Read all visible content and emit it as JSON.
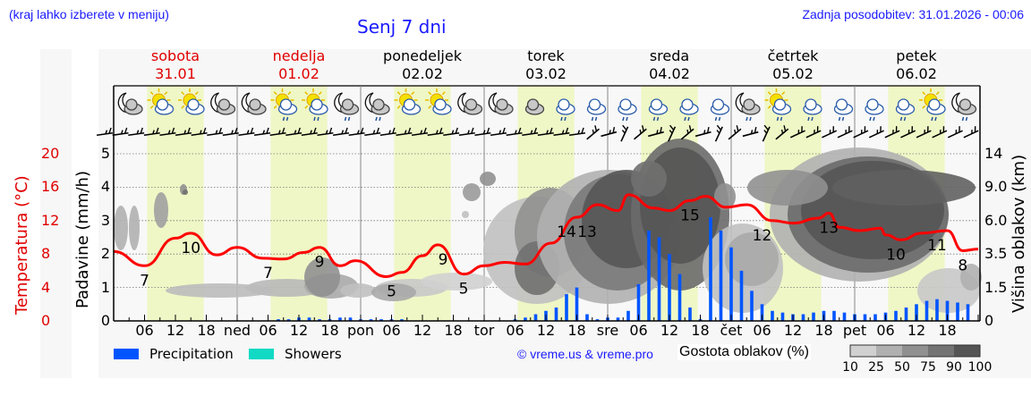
{
  "header": {
    "menu_hint": "(kraj lahko izberete v meniju)",
    "title": "Senj 7 dni",
    "last_update": "Zadnja posodobitev: 31.01.2026 - 00:06"
  },
  "days": [
    {
      "name": "sobota",
      "date": "31.01",
      "weekend": true
    },
    {
      "name": "nedelja",
      "date": "01.02",
      "weekend": true
    },
    {
      "name": "ponedeljek",
      "date": "02.02",
      "weekend": false
    },
    {
      "name": "torek",
      "date": "03.02",
      "weekend": false
    },
    {
      "name": "sreda",
      "date": "04.02",
      "weekend": false
    },
    {
      "name": "četrtek",
      "date": "05.02",
      "weekend": false
    },
    {
      "name": "petek",
      "date": "06.02",
      "weekend": false
    }
  ],
  "axes": {
    "temp_label": "Temperatura (°C)",
    "temp_ticks": [
      "20",
      "16",
      "12",
      "8",
      "4",
      "0"
    ],
    "precip_label": "Padavine (mm/h)",
    "precip_ticks": [
      "5",
      "4",
      "3",
      "2",
      "1",
      "0"
    ],
    "cloud_height_label": "Višina oblakov (km)",
    "cloud_height_ticks": [
      "14",
      "9.0",
      "6.0",
      "3.5",
      "1.5",
      "0"
    ],
    "x_ticks": [
      "06",
      "12",
      "18",
      "ned",
      "06",
      "12",
      "18",
      "pon",
      "06",
      "12",
      "18",
      "tor",
      "06",
      "12",
      "18",
      "sre",
      "06",
      "12",
      "18",
      "čet",
      "06",
      "12",
      "18",
      "pet",
      "06",
      "12",
      "18"
    ]
  },
  "legend": {
    "precipitation": "Precipitation",
    "showers": "Showers",
    "copyright": "© vreme.us & vreme.pro",
    "cloud_density_label": "Gostota oblakov (%)",
    "cloud_density_ticks": [
      "10",
      "25",
      "50",
      "75",
      "90",
      "100"
    ]
  },
  "colors": {
    "temperature": "#ff0000",
    "precipitation": "#0055ff",
    "showers": "#11d9c4",
    "daylight": "#eff7c6",
    "link_blue": "#1a1aff",
    "weekend_red": "#e00000",
    "cloud_scale": [
      "#d0d0d0",
      "#b0b0b0",
      "#909090",
      "#737373",
      "#555555"
    ]
  },
  "weather_icons": [
    "moon-cloud",
    "sun-cloud",
    "sun-cloud",
    "moon-cloud",
    "moon-cloud",
    "sun-cloud-rain",
    "sun-cloud-rain",
    "moon-cloud-rain",
    "moon-cloud-rain",
    "sun-cloud",
    "sun-cloud",
    "moon-cloud",
    "moon-cloud",
    "cloud",
    "cloud-rain",
    "cloud-rain",
    "cloud-rain",
    "cloud-rain",
    "cloud-rain",
    "cloud-rain",
    "moon-cloud-rain",
    "sun-cloud-rain",
    "cloud-rain",
    "cloud-rain",
    "cloud-rain",
    "cloud-rain",
    "sun-cloud-rain",
    "moon-cloud-rain"
  ],
  "chart_data": {
    "type": "line",
    "title": "Senj 7 dni",
    "xlabel": "",
    "ylabel": "Temperatura (°C)",
    "ylim": [
      0,
      20
    ],
    "x_range_hours": [
      0,
      168
    ],
    "grid": true,
    "series": [
      {
        "name": "Temperatura",
        "color": "#ff0000",
        "x_hours": [
          0,
          6,
          12,
          15,
          20,
          24,
          29,
          33,
          37,
          40,
          44,
          47,
          53,
          56,
          60,
          63,
          68,
          72,
          76,
          80,
          85,
          90,
          94,
          98,
          100,
          105,
          108,
          112,
          115,
          119,
          123,
          128,
          132,
          137,
          139,
          141,
          145,
          149,
          150,
          153,
          157,
          162,
          165,
          168
        ],
        "values": [
          8.3,
          6.6,
          9.9,
          10.5,
          7.9,
          8.8,
          7.5,
          7.4,
          8.2,
          8.8,
          6.6,
          7.2,
          5.3,
          5.8,
          7.8,
          9.1,
          5.6,
          6.6,
          7.0,
          6.8,
          9.3,
          12.4,
          13.9,
          13.2,
          15.1,
          13.5,
          13.2,
          14.4,
          14.9,
          13.6,
          13.9,
          12.0,
          11.7,
          12.3,
          12.9,
          11.2,
          10.8,
          11.1,
          10.3,
          9.7,
          10.5,
          10.8,
          8.4,
          8.6
        ]
      },
      {
        "name": "Precipitation",
        "unit": "mm/h",
        "color": "#0055ff",
        "x_hours": [
          32,
          34,
          36,
          38,
          40,
          42,
          44,
          46,
          48,
          50,
          52,
          54,
          56,
          78,
          80,
          82,
          84,
          86,
          88,
          90,
          92,
          94,
          96,
          98,
          100,
          102,
          104,
          106,
          108,
          110,
          112,
          114,
          116,
          118,
          120,
          122,
          124,
          126,
          128,
          130,
          132,
          134,
          136,
          138,
          140,
          142,
          144,
          146,
          148,
          150,
          152,
          154,
          156,
          158,
          160,
          162,
          164,
          166
        ],
        "values": [
          0.05,
          0.05,
          0.1,
          0.1,
          0.05,
          0.05,
          0.1,
          0.1,
          0.05,
          0.05,
          0.05,
          0.05,
          0.05,
          0.05,
          0.1,
          0.2,
          0.3,
          0.4,
          0.8,
          1.0,
          0.2,
          0.05,
          0.1,
          0.1,
          0.3,
          1.1,
          2.7,
          2.5,
          2.0,
          1.4,
          0.4,
          0.05,
          3.1,
          2.7,
          2.2,
          1.5,
          0.9,
          0.5,
          0.3,
          0.25,
          0.2,
          0.2,
          0.25,
          0.3,
          0.3,
          0.25,
          0.2,
          0.2,
          0.2,
          0.25,
          0.3,
          0.4,
          0.5,
          0.6,
          0.65,
          0.6,
          0.55,
          0.5
        ]
      }
    ],
    "point_labels": [
      {
        "hour": 6,
        "text": "7"
      },
      {
        "hour": 15,
        "text": "10"
      },
      {
        "hour": 30,
        "text": "7"
      },
      {
        "hour": 40,
        "text": "9"
      },
      {
        "hour": 54,
        "text": "5"
      },
      {
        "hour": 64,
        "text": "9"
      },
      {
        "hour": 68,
        "text": "5"
      },
      {
        "hour": 88,
        "text": "14"
      },
      {
        "hour": 92,
        "text": "13"
      },
      {
        "hour": 112,
        "text": "15"
      },
      {
        "hour": 126,
        "text": "12"
      },
      {
        "hour": 139,
        "text": "13"
      },
      {
        "hour": 152,
        "text": "10"
      },
      {
        "hour": 160,
        "text": "11"
      },
      {
        "hour": 165,
        "text": "8"
      }
    ],
    "secondary_axes": {
      "precipitation_mm_h": [
        0,
        5
      ],
      "cloud_height_km_ticks": [
        0,
        1.5,
        3.5,
        6.0,
        9.0,
        14
      ]
    },
    "legend": [
      "Precipitation",
      "Showers",
      "Gostota oblakov (%)"
    ]
  }
}
